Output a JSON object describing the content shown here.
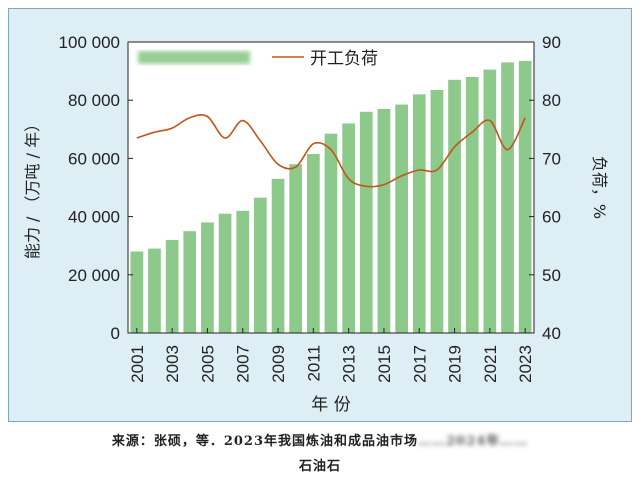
{
  "chart_data": {
    "type": "bar+line",
    "categories": [
      "2001",
      "2002",
      "2003",
      "2004",
      "2005",
      "2006",
      "2007",
      "2008",
      "2009",
      "2010",
      "2011",
      "2012",
      "2013",
      "2014",
      "2015",
      "2016",
      "2017",
      "2018",
      "2019",
      "2020",
      "2021",
      "2022",
      "2023"
    ],
    "x_tick_labels": [
      "2001",
      "2003",
      "2005",
      "2007",
      "2009",
      "2011",
      "2013",
      "2015",
      "2017",
      "2019",
      "2021",
      "2023"
    ],
    "xlabel": "年 份",
    "ylabel_left": "能力 / （万吨 / 年）",
    "ylabel_right": "负荷，%",
    "ylim_left": [
      0,
      100000
    ],
    "ylim_right": [
      40,
      90
    ],
    "left_ticks": [
      "0",
      "20 000",
      "40 000",
      "60 000",
      "80 000",
      "100 000"
    ],
    "right_ticks": [
      "40",
      "50",
      "60",
      "70",
      "80",
      "90"
    ],
    "series": [
      {
        "type": "bar",
        "axis": "left",
        "color": "#8cc98a",
        "values": [
          28000,
          29000,
          32000,
          35000,
          38000,
          41000,
          42000,
          46500,
          53000,
          58000,
          61500,
          68500,
          72000,
          76000,
          77000,
          78500,
          82000,
          83500,
          87000,
          88000,
          90500,
          93000,
          93500
        ]
      },
      {
        "name": "开工负荷",
        "type": "line",
        "axis": "right",
        "color": "#c0561a",
        "values": [
          73.5,
          74.5,
          75.2,
          77,
          77.2,
          73.5,
          76.5,
          73,
          69,
          68.5,
          72.5,
          71.5,
          66.5,
          65.2,
          65.5,
          67,
          68,
          68,
          72,
          74.5,
          76.5,
          71.5,
          77
        ]
      }
    ],
    "legend_placement": "top",
    "grid": false
  },
  "source_line1": "来源：张硕，等．2023年我国炼油和成品油市场",
  "source_line1_blurred": "……2024年……",
  "source_line2": "石油石"
}
